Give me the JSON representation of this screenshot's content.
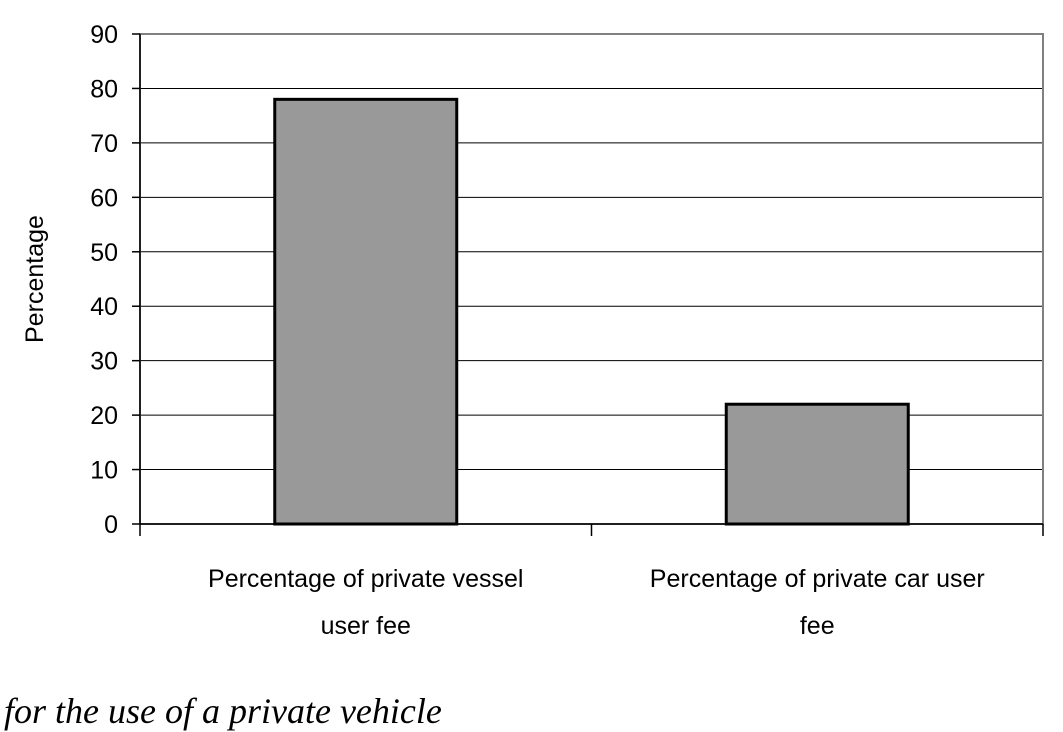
{
  "chart_data": {
    "type": "bar",
    "categories": [
      [
        "Percentage of private vessel",
        "user fee"
      ],
      [
        "Percentage of private car user",
        "fee"
      ]
    ],
    "values": [
      78,
      22
    ],
    "ylabel": "Percentage",
    "ylim": [
      0,
      90
    ],
    "yticks": [
      0,
      10,
      20,
      30,
      40,
      50,
      60,
      70,
      80,
      90
    ],
    "grid": true,
    "bar_color": "#999999",
    "bar_stroke": "#000000",
    "gridline_color": "#000000",
    "plot_border_color": "#808080"
  },
  "caption": "for the use of a private vehicle"
}
